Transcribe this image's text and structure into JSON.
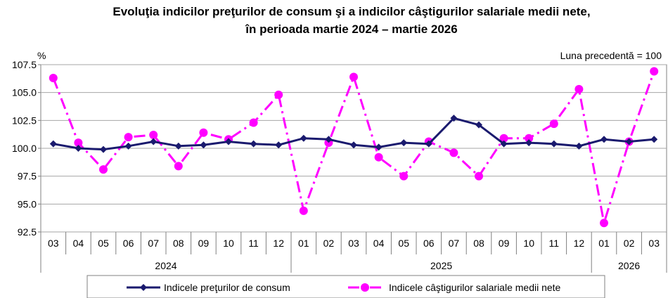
{
  "chart_data": {
    "type": "line",
    "title_lines": [
      "Evoluţia indicilor preţurilor de consum şi a indicilor câştigurilor salariale medii nete,",
      "în perioada martie 2024 – martie 2026"
    ],
    "ylabel": "%",
    "note": "Luna precedentă = 100",
    "ylim": [
      92.5,
      107.5
    ],
    "yticks": [
      "107.5",
      "105.0",
      "102.5",
      "100.0",
      "97.5",
      "95.0",
      "92.5"
    ],
    "categories": [
      "03",
      "04",
      "05",
      "06",
      "07",
      "08",
      "09",
      "10",
      "11",
      "12",
      "01",
      "02",
      "03",
      "04",
      "05",
      "06",
      "07",
      "08",
      "09",
      "10",
      "11",
      "12",
      "01",
      "02",
      "03"
    ],
    "years": [
      {
        "label": "2024",
        "start": 0,
        "end": 9
      },
      {
        "label": "2025",
        "start": 10,
        "end": 21
      },
      {
        "label": "2026",
        "start": 22,
        "end": 24
      }
    ],
    "grid": true,
    "legend_position": "bottom",
    "series": [
      {
        "name": "Indicele preţurilor de consum",
        "color": "#1a1a6e",
        "style": "solid-diamond",
        "values": [
          100.4,
          100.0,
          99.9,
          100.2,
          100.6,
          100.2,
          100.3,
          100.6,
          100.4,
          100.3,
          100.9,
          100.8,
          100.3,
          100.1,
          100.5,
          100.4,
          102.7,
          102.1,
          100.4,
          100.5,
          100.4,
          100.2,
          100.8,
          100.6,
          100.8
        ]
      },
      {
        "name": "Indicele câştigurilor salariale medii nete",
        "color": "#ff00ff",
        "style": "dashdot-circle",
        "values": [
          106.3,
          100.5,
          98.1,
          101.0,
          101.2,
          98.4,
          101.4,
          100.8,
          102.3,
          104.8,
          94.4,
          100.5,
          106.4,
          99.2,
          97.5,
          100.6,
          99.6,
          97.5,
          100.9,
          100.9,
          102.2,
          105.3,
          93.3,
          100.6,
          106.9
        ]
      }
    ]
  }
}
